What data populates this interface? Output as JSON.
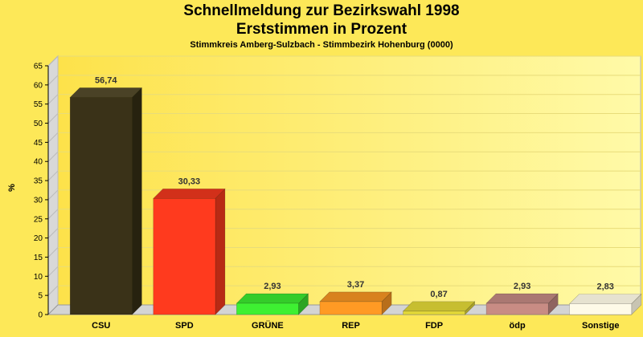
{
  "chart_data": {
    "type": "bar",
    "title": "Schnellmeldung zur Bezirkswahl 1998",
    "title2": "Erststimmen in Prozent",
    "subtitle": "Stimmkreis Amberg-Sulzbach - Stimmbezirk Hohenburg (0000)",
    "ylabel": "%",
    "ylim": [
      0,
      65
    ],
    "yticks": [
      0,
      5,
      10,
      15,
      20,
      25,
      30,
      35,
      40,
      45,
      50,
      55,
      60,
      65
    ],
    "grid": true,
    "categories": [
      "CSU",
      "SPD",
      "GRÜNE",
      "REP",
      "FDP",
      "ödp",
      "Sonstige"
    ],
    "values": [
      56.74,
      30.33,
      2.93,
      3.37,
      0.87,
      2.93,
      2.83
    ],
    "value_labels": [
      "56,74",
      "30,33",
      "2,93",
      "3,37",
      "0,87",
      "2,93",
      "2,83"
    ],
    "colors": [
      "#3a3218",
      "#ff3a1e",
      "#3ef032",
      "#ff9a24",
      "#e2d838",
      "#c88c84",
      "#fefae8"
    ],
    "side_colors": [
      "#27220f",
      "#b82a14",
      "#2ca524",
      "#b86e1a",
      "#a9a128",
      "#8f6460",
      "#c8c4b2"
    ],
    "top_colors": [
      "#4a4226",
      "#d2301a",
      "#34cc2a",
      "#d8821e",
      "#c7be30",
      "#aa7872",
      "#e6e2d0"
    ]
  }
}
